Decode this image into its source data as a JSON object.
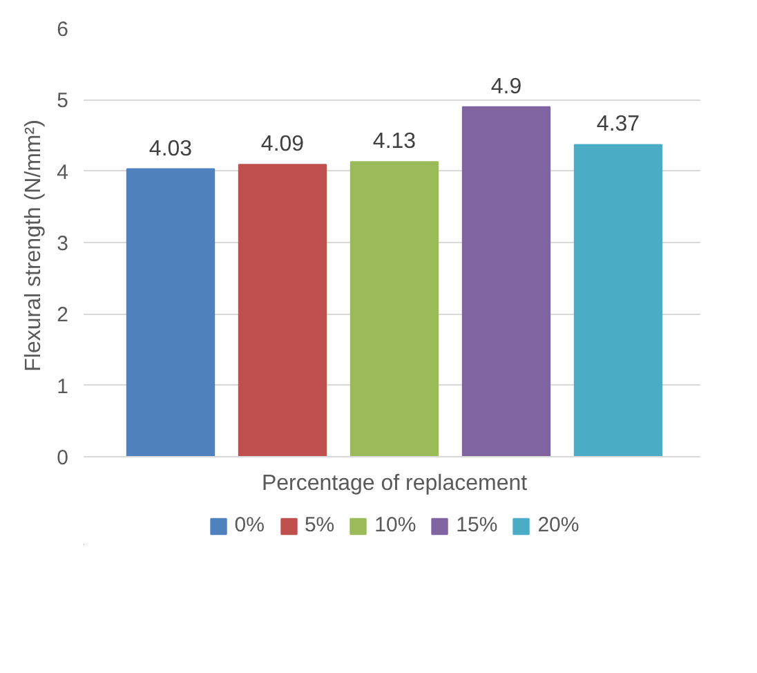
{
  "chart_data": {
    "type": "bar",
    "xlabel": "Percentage of replacement",
    "ylabel": "Flexural  strength (N/mm²)",
    "categories": [
      null
    ],
    "series": [
      {
        "name": "0%",
        "color": "#4f81bd",
        "values": [
          4.03
        ]
      },
      {
        "name": "5%",
        "color": "#c0504d",
        "values": [
          4.09
        ]
      },
      {
        "name": "10%",
        "color": "#9bbb59",
        "values": [
          4.13
        ]
      },
      {
        "name": "15%",
        "color": "#8064a2",
        "values": [
          4.9
        ]
      },
      {
        "name": "20%",
        "color": "#4bacc6",
        "values": [
          4.37
        ]
      }
    ],
    "ylim": [
      0,
      6
    ],
    "yticks": [
      0,
      1,
      2,
      3,
      4,
      5,
      6
    ],
    "grid": "y",
    "legend": "bottom",
    "data_labels": true
  }
}
